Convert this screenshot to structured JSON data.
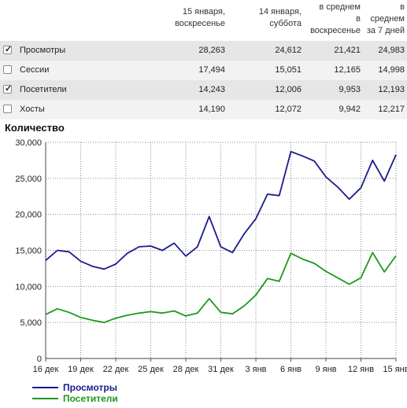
{
  "table": {
    "headers": [
      [
        "15 января,",
        "воскресенье"
      ],
      [
        "14 января,",
        "суббота"
      ],
      [
        "в среднем",
        "в",
        "воскресенье"
      ],
      [
        "в",
        "среднем",
        "за 7 дней"
      ]
    ],
    "rows": [
      {
        "label": "Просмотры",
        "checked": true,
        "values": [
          "28,263",
          "24,612",
          "21,421",
          "24,983"
        ]
      },
      {
        "label": "Сессии",
        "checked": false,
        "values": [
          "17,494",
          "15,051",
          "12,165",
          "14,998"
        ]
      },
      {
        "label": "Посетители",
        "checked": true,
        "values": [
          "14,243",
          "12,006",
          "9,953",
          "12,193"
        ]
      },
      {
        "label": "Хосты",
        "checked": false,
        "values": [
          "14,190",
          "12,072",
          "9,942",
          "12,217"
        ]
      }
    ]
  },
  "chart_title": "Количество",
  "colors": {
    "views": "#1a1a8c",
    "visitors": "#1a9a1a",
    "grid": "#8a8a8a"
  },
  "chart_data": {
    "type": "line",
    "categories": [
      "16 дек",
      "17 дек",
      "18 дек",
      "19 дек",
      "20 дек",
      "21 дек",
      "22 дек",
      "23 дек",
      "24 дек",
      "25 дек",
      "26 дек",
      "27 дек",
      "28 дек",
      "29 дек",
      "30 дек",
      "31 дек",
      "1 янв",
      "2 янв",
      "3 янв",
      "4 янв",
      "5 янв",
      "6 янв",
      "7 янв",
      "8 янв",
      "9 янв",
      "10 янв",
      "11 янв",
      "12 янв",
      "13 янв",
      "14 янв",
      "15 янв"
    ],
    "x_tick_labels": [
      "16 дек",
      "19 дек",
      "22 дек",
      "25 дек",
      "28 дек",
      "31 дек",
      "3 янв",
      "6 янв",
      "9 янв",
      "12 янв",
      "15 янв"
    ],
    "y_ticks": [
      "0",
      "5,000",
      "10,000",
      "15,000",
      "20,000",
      "25,000",
      "30,000"
    ],
    "ylim": [
      0,
      30000
    ],
    "grid": true,
    "legend_position": "bottom-left",
    "series": [
      {
        "name": "Просмотры",
        "color": "#1a1a8c",
        "values": [
          13600,
          15000,
          14800,
          13500,
          12800,
          12400,
          13100,
          14600,
          15500,
          15600,
          15000,
          16000,
          14200,
          15500,
          19700,
          15500,
          14700,
          17300,
          19400,
          22800,
          22600,
          28700,
          28100,
          27400,
          25200,
          23800,
          22100,
          23700,
          27500,
          24612,
          28263
        ]
      },
      {
        "name": "Посетители",
        "color": "#1a9a1a",
        "values": [
          6100,
          6900,
          6400,
          5700,
          5300,
          5000,
          5600,
          6000,
          6300,
          6500,
          6300,
          6600,
          5900,
          6300,
          8300,
          6400,
          6200,
          7300,
          8800,
          11100,
          10700,
          14600,
          13800,
          13200,
          12100,
          11200,
          10300,
          11200,
          14700,
          12006,
          14243
        ]
      }
    ]
  }
}
